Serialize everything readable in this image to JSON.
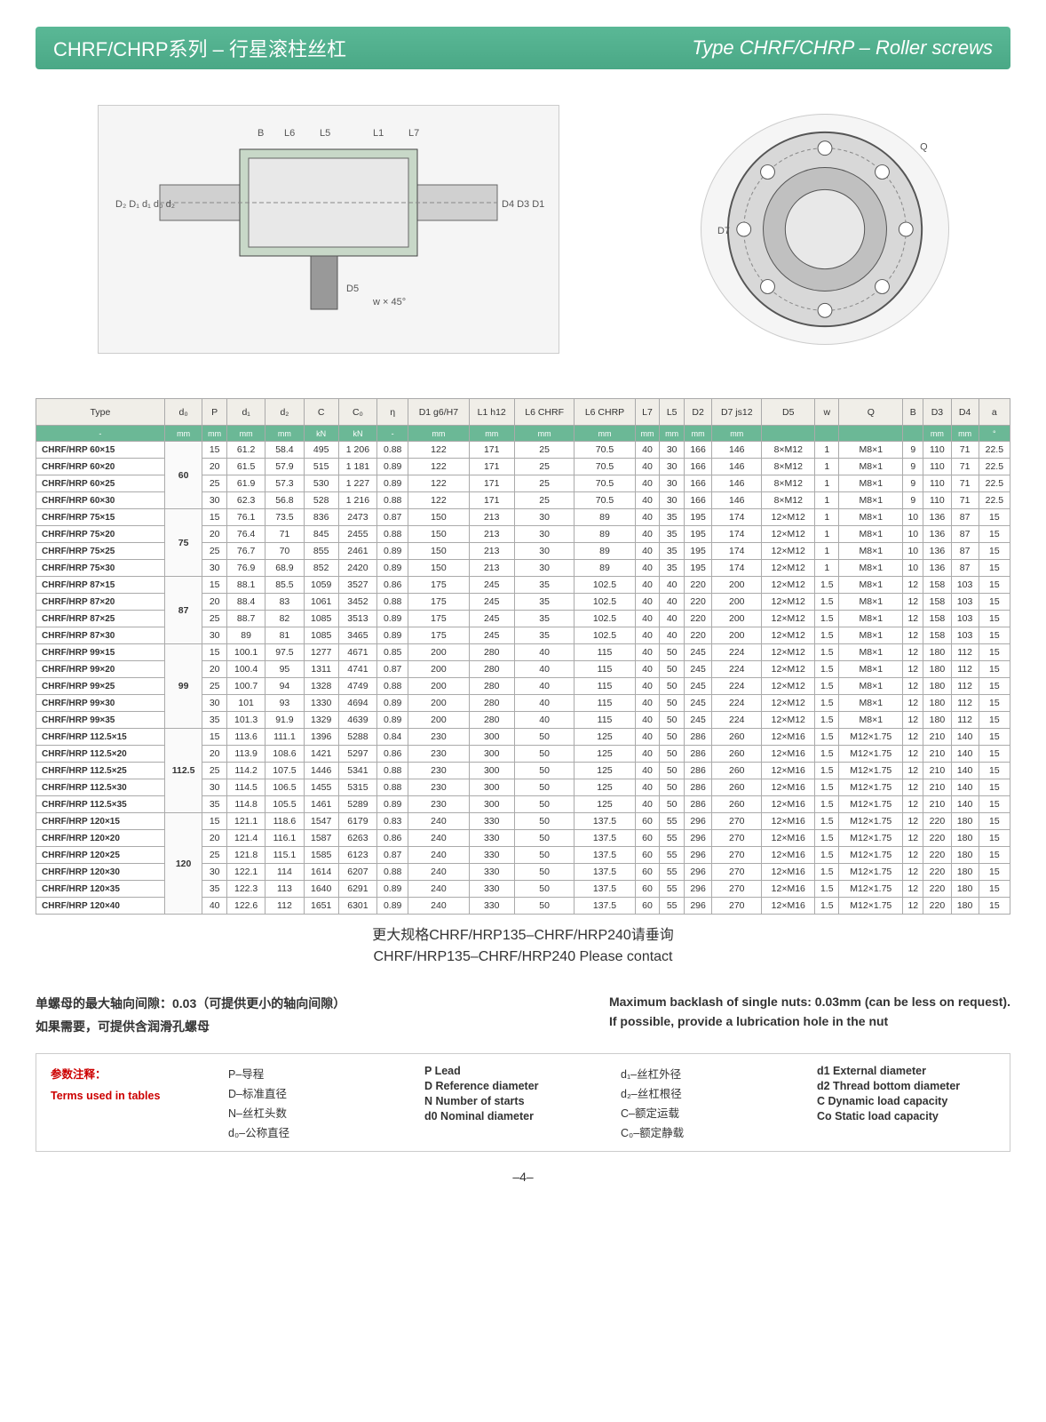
{
  "banner": {
    "cn": "CHRF/CHRP系列 – 行星滚柱丝杠",
    "en": "Type CHRF/CHRP – Roller screws"
  },
  "diagrams": {
    "section_labels": [
      "B",
      "L6",
      "L5",
      "L1",
      "L7",
      "D2",
      "D1",
      "d1",
      "d0",
      "d2",
      "D4",
      "D3",
      "D1",
      "D5",
      "w × 45°"
    ],
    "flange_labels": [
      "Q",
      "D7"
    ],
    "section_placeholder": "[ Cross-section technical drawing of roller screw assembly ]",
    "flange_placeholder": "[ Flange front view drawing ]"
  },
  "table": {
    "headers": [
      "Type",
      "d₀",
      "P",
      "d₁",
      "d₂",
      "C",
      "C₀",
      "η",
      "D1 g6/H7",
      "L1 h12",
      "L6 CHRF",
      "L6 CHRP",
      "L7",
      "L5",
      "D2",
      "D7 js12",
      "D5",
      "w",
      "Q",
      "B",
      "D3",
      "D4",
      "a"
    ],
    "units": [
      "-",
      "mm",
      "mm",
      "mm",
      "mm",
      "kN",
      "kN",
      "-",
      "mm",
      "mm",
      "mm",
      "mm",
      "mm",
      "mm",
      "mm",
      "mm",
      "",
      "",
      "",
      "",
      "mm",
      "mm",
      "°"
    ],
    "groups": [
      {
        "d0": "60",
        "rows": [
          [
            "CHRF/HRP 60×15",
            "15",
            "61.2",
            "58.4",
            "495",
            "1 206",
            "0.88",
            "122",
            "171",
            "25",
            "70.5",
            "40",
            "30",
            "166",
            "146",
            "8×M12",
            "1",
            "M8×1",
            "9",
            "110",
            "71",
            "22.5"
          ],
          [
            "CHRF/HRP 60×20",
            "20",
            "61.5",
            "57.9",
            "515",
            "1 181",
            "0.89",
            "122",
            "171",
            "25",
            "70.5",
            "40",
            "30",
            "166",
            "146",
            "8×M12",
            "1",
            "M8×1",
            "9",
            "110",
            "71",
            "22.5"
          ],
          [
            "CHRF/HRP 60×25",
            "25",
            "61.9",
            "57.3",
            "530",
            "1 227",
            "0.89",
            "122",
            "171",
            "25",
            "70.5",
            "40",
            "30",
            "166",
            "146",
            "8×M12",
            "1",
            "M8×1",
            "9",
            "110",
            "71",
            "22.5"
          ],
          [
            "CHRF/HRP 60×30",
            "30",
            "62.3",
            "56.8",
            "528",
            "1 216",
            "0.88",
            "122",
            "171",
            "25",
            "70.5",
            "40",
            "30",
            "166",
            "146",
            "8×M12",
            "1",
            "M8×1",
            "9",
            "110",
            "71",
            "22.5"
          ]
        ]
      },
      {
        "d0": "75",
        "rows": [
          [
            "CHRF/HRP 75×15",
            "15",
            "76.1",
            "73.5",
            "836",
            "2473",
            "0.87",
            "150",
            "213",
            "30",
            "89",
            "40",
            "35",
            "195",
            "174",
            "12×M12",
            "1",
            "M8×1",
            "10",
            "136",
            "87",
            "15"
          ],
          [
            "CHRF/HRP 75×20",
            "20",
            "76.4",
            "71",
            "845",
            "2455",
            "0.88",
            "150",
            "213",
            "30",
            "89",
            "40",
            "35",
            "195",
            "174",
            "12×M12",
            "1",
            "M8×1",
            "10",
            "136",
            "87",
            "15"
          ],
          [
            "CHRF/HRP 75×25",
            "25",
            "76.7",
            "70",
            "855",
            "2461",
            "0.89",
            "150",
            "213",
            "30",
            "89",
            "40",
            "35",
            "195",
            "174",
            "12×M12",
            "1",
            "M8×1",
            "10",
            "136",
            "87",
            "15"
          ],
          [
            "CHRF/HRP 75×30",
            "30",
            "76.9",
            "68.9",
            "852",
            "2420",
            "0.89",
            "150",
            "213",
            "30",
            "89",
            "40",
            "35",
            "195",
            "174",
            "12×M12",
            "1",
            "M8×1",
            "10",
            "136",
            "87",
            "15"
          ]
        ]
      },
      {
        "d0": "87",
        "rows": [
          [
            "CHRF/HRP 87×15",
            "15",
            "88.1",
            "85.5",
            "1059",
            "3527",
            "0.86",
            "175",
            "245",
            "35",
            "102.5",
            "40",
            "40",
            "220",
            "200",
            "12×M12",
            "1.5",
            "M8×1",
            "12",
            "158",
            "103",
            "15"
          ],
          [
            "CHRF/HRP 87×20",
            "20",
            "88.4",
            "83",
            "1061",
            "3452",
            "0.88",
            "175",
            "245",
            "35",
            "102.5",
            "40",
            "40",
            "220",
            "200",
            "12×M12",
            "1.5",
            "M8×1",
            "12",
            "158",
            "103",
            "15"
          ],
          [
            "CHRF/HRP 87×25",
            "25",
            "88.7",
            "82",
            "1085",
            "3513",
            "0.89",
            "175",
            "245",
            "35",
            "102.5",
            "40",
            "40",
            "220",
            "200",
            "12×M12",
            "1.5",
            "M8×1",
            "12",
            "158",
            "103",
            "15"
          ],
          [
            "CHRF/HRP 87×30",
            "30",
            "89",
            "81",
            "1085",
            "3465",
            "0.89",
            "175",
            "245",
            "35",
            "102.5",
            "40",
            "40",
            "220",
            "200",
            "12×M12",
            "1.5",
            "M8×1",
            "12",
            "158",
            "103",
            "15"
          ]
        ]
      },
      {
        "d0": "99",
        "rows": [
          [
            "CHRF/HRP 99×15",
            "15",
            "100.1",
            "97.5",
            "1277",
            "4671",
            "0.85",
            "200",
            "280",
            "40",
            "115",
            "40",
            "50",
            "245",
            "224",
            "12×M12",
            "1.5",
            "M8×1",
            "12",
            "180",
            "112",
            "15"
          ],
          [
            "CHRF/HRP 99×20",
            "20",
            "100.4",
            "95",
            "1311",
            "4741",
            "0.87",
            "200",
            "280",
            "40",
            "115",
            "40",
            "50",
            "245",
            "224",
            "12×M12",
            "1.5",
            "M8×1",
            "12",
            "180",
            "112",
            "15"
          ],
          [
            "CHRF/HRP 99×25",
            "25",
            "100.7",
            "94",
            "1328",
            "4749",
            "0.88",
            "200",
            "280",
            "40",
            "115",
            "40",
            "50",
            "245",
            "224",
            "12×M12",
            "1.5",
            "M8×1",
            "12",
            "180",
            "112",
            "15"
          ],
          [
            "CHRF/HRP 99×30",
            "30",
            "101",
            "93",
            "1330",
            "4694",
            "0.89",
            "200",
            "280",
            "40",
            "115",
            "40",
            "50",
            "245",
            "224",
            "12×M12",
            "1.5",
            "M8×1",
            "12",
            "180",
            "112",
            "15"
          ],
          [
            "CHRF/HRP 99×35",
            "35",
            "101.3",
            "91.9",
            "1329",
            "4639",
            "0.89",
            "200",
            "280",
            "40",
            "115",
            "40",
            "50",
            "245",
            "224",
            "12×M12",
            "1.5",
            "M8×1",
            "12",
            "180",
            "112",
            "15"
          ]
        ]
      },
      {
        "d0": "112.5",
        "rows": [
          [
            "CHRF/HRP 112.5×15",
            "15",
            "113.6",
            "111.1",
            "1396",
            "5288",
            "0.84",
            "230",
            "300",
            "50",
            "125",
            "40",
            "50",
            "286",
            "260",
            "12×M16",
            "1.5",
            "M12×1.75",
            "12",
            "210",
            "140",
            "15"
          ],
          [
            "CHRF/HRP 112.5×20",
            "20",
            "113.9",
            "108.6",
            "1421",
            "5297",
            "0.86",
            "230",
            "300",
            "50",
            "125",
            "40",
            "50",
            "286",
            "260",
            "12×M16",
            "1.5",
            "M12×1.75",
            "12",
            "210",
            "140",
            "15"
          ],
          [
            "CHRF/HRP 112.5×25",
            "25",
            "114.2",
            "107.5",
            "1446",
            "5341",
            "0.88",
            "230",
            "300",
            "50",
            "125",
            "40",
            "50",
            "286",
            "260",
            "12×M16",
            "1.5",
            "M12×1.75",
            "12",
            "210",
            "140",
            "15"
          ],
          [
            "CHRF/HRP 112.5×30",
            "30",
            "114.5",
            "106.5",
            "1455",
            "5315",
            "0.88",
            "230",
            "300",
            "50",
            "125",
            "40",
            "50",
            "286",
            "260",
            "12×M16",
            "1.5",
            "M12×1.75",
            "12",
            "210",
            "140",
            "15"
          ],
          [
            "CHRF/HRP 112.5×35",
            "35",
            "114.8",
            "105.5",
            "1461",
            "5289",
            "0.89",
            "230",
            "300",
            "50",
            "125",
            "40",
            "50",
            "286",
            "260",
            "12×M16",
            "1.5",
            "M12×1.75",
            "12",
            "210",
            "140",
            "15"
          ]
        ]
      },
      {
        "d0": "120",
        "rows": [
          [
            "CHRF/HRP 120×15",
            "15",
            "121.1",
            "118.6",
            "1547",
            "6179",
            "0.83",
            "240",
            "330",
            "50",
            "137.5",
            "60",
            "55",
            "296",
            "270",
            "12×M16",
            "1.5",
            "M12×1.75",
            "12",
            "220",
            "180",
            "15"
          ],
          [
            "CHRF/HRP 120×20",
            "20",
            "121.4",
            "116.1",
            "1587",
            "6263",
            "0.86",
            "240",
            "330",
            "50",
            "137.5",
            "60",
            "55",
            "296",
            "270",
            "12×M16",
            "1.5",
            "M12×1.75",
            "12",
            "220",
            "180",
            "15"
          ],
          [
            "CHRF/HRP 120×25",
            "25",
            "121.8",
            "115.1",
            "1585",
            "6123",
            "0.87",
            "240",
            "330",
            "50",
            "137.5",
            "60",
            "55",
            "296",
            "270",
            "12×M16",
            "1.5",
            "M12×1.75",
            "12",
            "220",
            "180",
            "15"
          ],
          [
            "CHRF/HRP 120×30",
            "30",
            "122.1",
            "114",
            "1614",
            "6207",
            "0.88",
            "240",
            "330",
            "50",
            "137.5",
            "60",
            "55",
            "296",
            "270",
            "12×M16",
            "1.5",
            "M12×1.75",
            "12",
            "220",
            "180",
            "15"
          ],
          [
            "CHRF/HRP 120×35",
            "35",
            "122.3",
            "113",
            "1640",
            "6291",
            "0.89",
            "240",
            "330",
            "50",
            "137.5",
            "60",
            "55",
            "296",
            "270",
            "12×M16",
            "1.5",
            "M12×1.75",
            "12",
            "220",
            "180",
            "15"
          ],
          [
            "CHRF/HRP 120×40",
            "40",
            "122.6",
            "112",
            "1651",
            "6301",
            "0.89",
            "240",
            "330",
            "50",
            "137.5",
            "60",
            "55",
            "296",
            "270",
            "12×M16",
            "1.5",
            "M12×1.75",
            "12",
            "220",
            "180",
            "15"
          ]
        ]
      }
    ]
  },
  "contact": {
    "cn": "更大规格CHRF/HRP135–CHRF/HRP240请垂询",
    "en": "CHRF/HRP135–CHRF/HRP240 Please contact"
  },
  "notes": {
    "line1_cn": "单螺母的最大轴向间隙：0.03（可提供更小的轴向间隙）",
    "line1_en": "Maximum backlash of single nuts: 0.03mm (can be less on request).",
    "line2_cn": "如果需要，可提供含润滑孔螺母",
    "line2_en": "If possible, provide a lubrication hole in the nut"
  },
  "terms": {
    "header_cn": "参数注释：",
    "header_en": "Terms used in tables",
    "col1": [
      "P–导程",
      "D–标准直径",
      "N–丝杠头数",
      "d₀–公称直径"
    ],
    "col2": [
      "P  Lead",
      "D  Reference diameter",
      "N  Number of starts",
      "d0  Nominal diameter"
    ],
    "col3": [
      "d₁–丝杠外径",
      "d₂–丝杠根径",
      "C–额定运载",
      "C₀–额定静载"
    ],
    "col4": [
      "d1  External diameter",
      "d2  Thread bottom diameter",
      "C  Dynamic load capacity",
      "Co  Static load capacity"
    ]
  },
  "page": "–4–"
}
